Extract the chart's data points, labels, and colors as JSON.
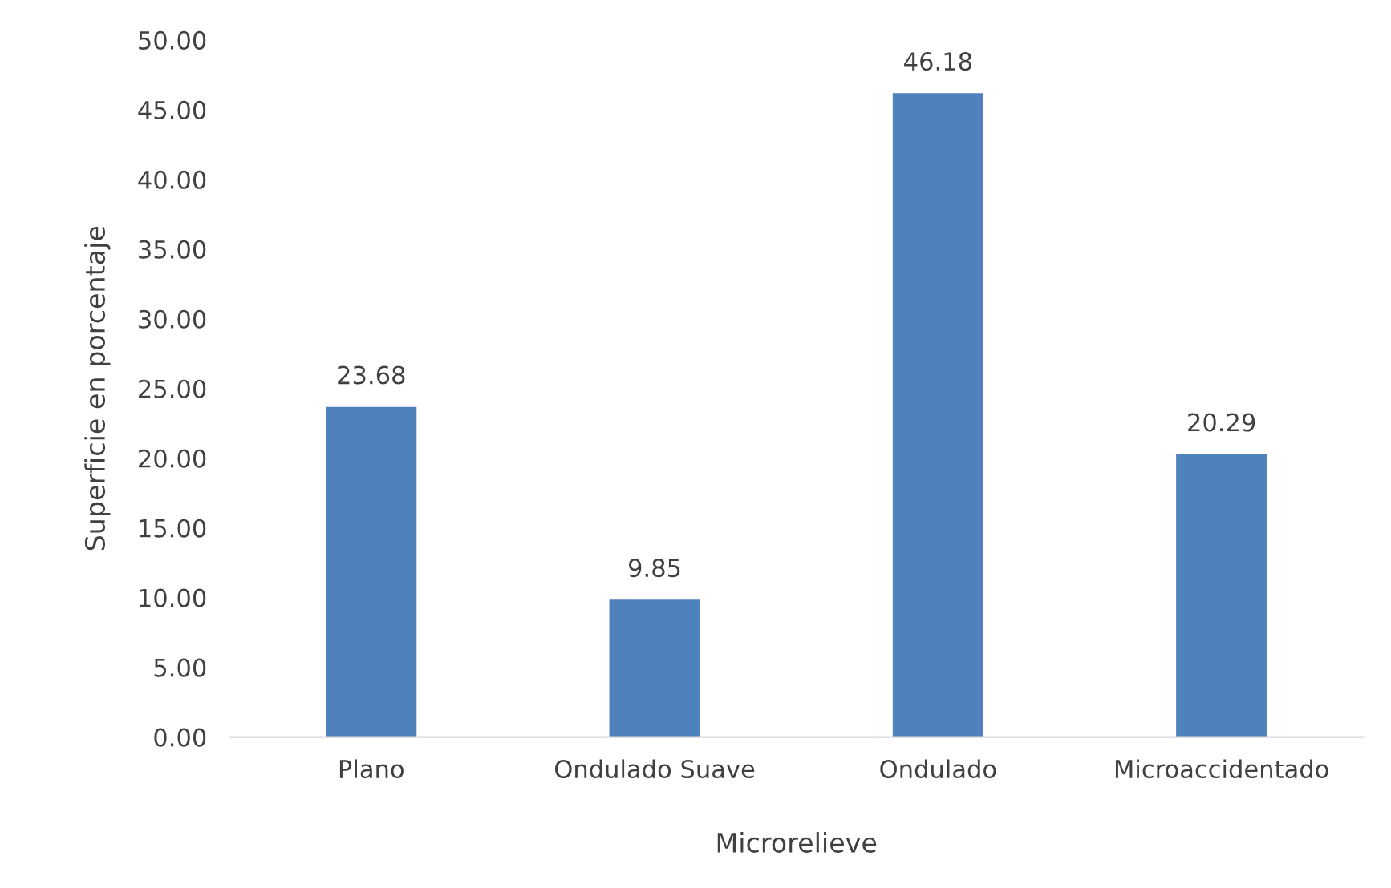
{
  "chart_data": {
    "type": "bar",
    "categories": [
      "Plano",
      "Ondulado Suave",
      "Ondulado",
      "Microaccidentado"
    ],
    "values": [
      23.68,
      9.85,
      46.18,
      20.29
    ],
    "color": "#4f81bd",
    "xlabel": "Microrelieve",
    "ylabel": "Superficie en porcentaje",
    "ylim": [
      0,
      50
    ],
    "yticks": [
      {
        "value": 0,
        "label": "0.00"
      },
      {
        "value": 5,
        "label": "5.00"
      },
      {
        "value": 10,
        "label": "10.00"
      },
      {
        "value": 15,
        "label": "15.00"
      },
      {
        "value": 20,
        "label": "20.00"
      },
      {
        "value": 25,
        "label": "25.00"
      },
      {
        "value": 30,
        "label": "30.00"
      },
      {
        "value": 35,
        "label": "35.00"
      },
      {
        "value": 40,
        "label": "40.00"
      },
      {
        "value": 45,
        "label": "45.00"
      },
      {
        "value": 50,
        "label": "50.00"
      }
    ],
    "data_labels": true,
    "grid": false,
    "legend": false
  }
}
